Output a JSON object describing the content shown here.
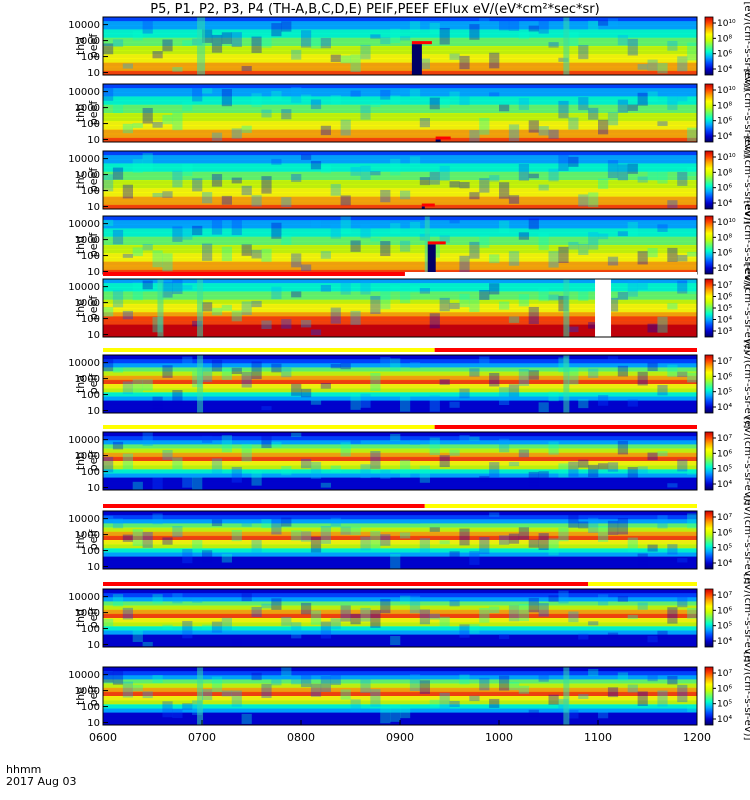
{
  "title": "P5, P1, P2, P3, P4 (TH-A,B,C,D,E) PEIF,PEEF EFlux eV/(eV*cm²*sec*sr)",
  "footer": {
    "time_label": "hhmm",
    "date_label": "2017 Aug 03"
  },
  "colors": {
    "background": "#ffffff",
    "axis": "#000000",
    "quality_bar_red": "#ff0000",
    "quality_bar_yellow": "#ffff00"
  },
  "chart_data": {
    "type": "heatmap",
    "x_axis": {
      "ticks": [
        "0600",
        "0700",
        "0800",
        "0900",
        "1000",
        "1100",
        "1200"
      ],
      "range": [
        600,
        1200
      ],
      "label": "hhmm"
    },
    "y_axis": {
      "scale": "log",
      "ticks": [
        "10",
        "100",
        "1000",
        "10000"
      ],
      "range": [
        7,
        30000
      ]
    },
    "colormap": [
      "#000066",
      "#0000cc",
      "#0044ff",
      "#00aaff",
      "#00ffcc",
      "#66ff66",
      "#ccff00",
      "#ffff00",
      "#ffaa00",
      "#ff4400",
      "#cc0000"
    ],
    "panels": [
      {
        "probe": "tha",
        "product": "peef",
        "colorbar_ticks": [
          "10⁴",
          "10⁶",
          "10⁸",
          "10¹⁰"
        ],
        "units": "[eV/(cm²-s-sr-eV)]",
        "spikes": [
          {
            "t": 695,
            "w": 8
          },
          {
            "t": 1065,
            "w": 6
          }
        ],
        "gaps": [
          {
            "t": 912,
            "w": 10,
            "e": 600
          }
        ]
      },
      {
        "probe": "thb",
        "product": "peef",
        "colorbar_ticks": [
          "10⁴",
          "10⁶",
          "10⁸",
          "10¹⁰"
        ],
        "units": "[eV/(cm²-s-sr-eV)]",
        "spikes": [],
        "gaps": [
          {
            "t": 936,
            "w": 5,
            "e": 10
          }
        ]
      },
      {
        "probe": "thc",
        "product": "peef",
        "colorbar_ticks": [
          "10⁴",
          "10⁶",
          "10⁸",
          "10¹⁰"
        ],
        "units": "[eV/(cm²-s-sr-eV)]",
        "spikes": [],
        "gaps": [
          {
            "t": 922,
            "w": 3,
            "e": 10
          }
        ]
      },
      {
        "probe": "thd",
        "product": "peef",
        "colorbar_ticks": [
          "10⁴",
          "10⁶",
          "10⁸",
          "10¹⁰"
        ],
        "units": "[eV/(cm²-s-sr-eV)]",
        "spikes": [
          {
            "t": 925,
            "w": 5
          }
        ],
        "gaps": [
          {
            "t": 928,
            "w": 8,
            "e": 500
          }
        ]
      },
      {
        "probe": "the",
        "product": "peef",
        "colorbar_ticks": [
          "10³",
          "10⁴",
          "10⁵",
          "10⁶",
          "10⁷"
        ],
        "units": "[eV/(cm²-s-sr-eV)]",
        "spikes": [
          {
            "t": 655,
            "w": 6
          },
          {
            "t": 695,
            "w": 6
          },
          {
            "t": 1065,
            "w": 6
          }
        ],
        "gaps": [],
        "blank": {
          "t": 1097,
          "w": 8
        }
      },
      {
        "probe": "tha",
        "product": "peif",
        "colorbar_ticks": [
          "10⁴",
          "10⁵",
          "10⁶",
          "10⁷"
        ],
        "units": "[eV/(cm²-s-sr-eV)]",
        "spikes": [
          {
            "t": 695,
            "w": 6
          },
          {
            "t": 1065,
            "w": 6
          }
        ],
        "gaps": []
      },
      {
        "probe": "thb",
        "product": "peif",
        "colorbar_ticks": [
          "10⁴",
          "10⁵",
          "10⁶",
          "10⁷"
        ],
        "units": "[eV/(cm²-s-sr-eV)]",
        "spikes": [],
        "gaps": []
      },
      {
        "probe": "thc",
        "product": "peif",
        "colorbar_ticks": [
          "10⁴",
          "10⁵",
          "10⁶",
          "10⁷"
        ],
        "units": "[eV/(cm²-s-sr-eV)]",
        "spikes": [],
        "gaps": []
      },
      {
        "probe": "thd",
        "product": "peif",
        "colorbar_ticks": [
          "10⁴",
          "10⁵",
          "10⁶",
          "10⁷"
        ],
        "units": "[eV/(cm²-s-sr-eV)]",
        "spikes": [],
        "gaps": []
      },
      {
        "probe": "the",
        "product": "peif",
        "colorbar_ticks": [
          "10⁴",
          "10⁵",
          "10⁶",
          "10⁷"
        ],
        "units": "[eV/(cm²-s-sr-eV)]",
        "spikes": [
          {
            "t": 695,
            "w": 6
          },
          {
            "t": 1065,
            "w": 6
          }
        ],
        "gaps": []
      }
    ],
    "quality_bars": [
      {
        "after_panel": 4,
        "segments": [
          {
            "from": 600,
            "to": 905,
            "color": "red"
          },
          {
            "from": 905,
            "to": 1200,
            "color": "white"
          }
        ]
      },
      {
        "after_panel": 5,
        "segments": [
          {
            "from": 600,
            "to": 935,
            "color": "yellow"
          },
          {
            "from": 935,
            "to": 1200,
            "color": "red"
          }
        ]
      },
      {
        "after_panel": 6,
        "segments": [
          {
            "from": 600,
            "to": 935,
            "color": "yellow"
          },
          {
            "from": 935,
            "to": 1200,
            "color": "red"
          }
        ]
      },
      {
        "after_panel": 7,
        "segments": [
          {
            "from": 600,
            "to": 925,
            "color": "red"
          },
          {
            "from": 925,
            "to": 1200,
            "color": "yellow"
          }
        ]
      },
      {
        "after_panel": 8,
        "segments": [
          {
            "from": 600,
            "to": 1090,
            "color": "red"
          },
          {
            "from": 1090,
            "to": 1200,
            "color": "yellow"
          }
        ]
      }
    ]
  }
}
